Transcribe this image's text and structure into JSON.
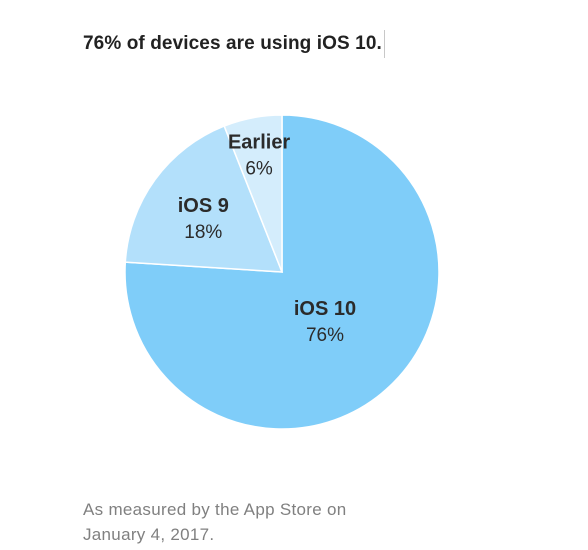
{
  "headline": "76% of devices are using iOS 10.",
  "footnote": "As measured by the App Store on January 4, 2017.",
  "chart_data": {
    "type": "pie",
    "title": "76% of devices are using iOS 10.",
    "slices": [
      {
        "name": "iOS 10",
        "label": "76%",
        "value": 76,
        "color": "#7fcdf9"
      },
      {
        "name": "iOS 9",
        "label": "18%",
        "value": 18,
        "color": "#b3e0fb"
      },
      {
        "name": "Earlier",
        "label": "6%",
        "value": 6,
        "color": "#d4edfc"
      }
    ],
    "legend": "none",
    "grid": false
  }
}
